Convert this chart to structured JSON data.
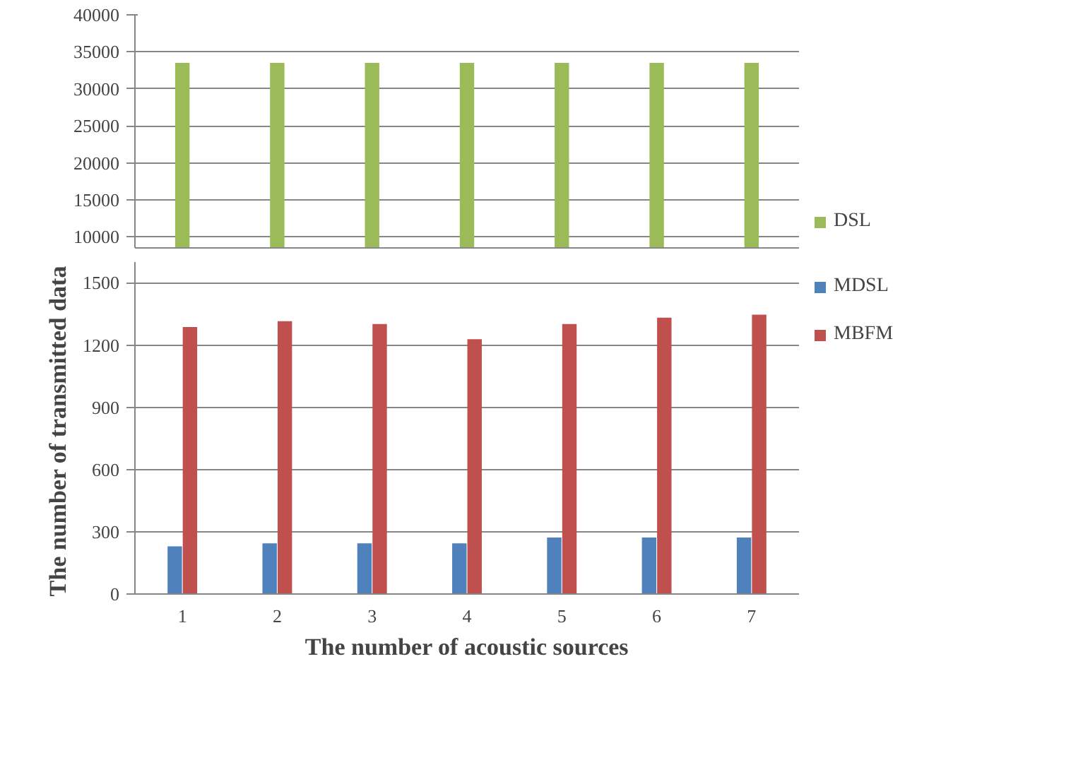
{
  "chart_data": [
    {
      "type": "bar",
      "categories": [
        "1",
        "2",
        "3",
        "4",
        "5",
        "6",
        "7"
      ],
      "ylim": [
        8500,
        40000
      ],
      "yticks": [
        10000,
        15000,
        20000,
        25000,
        30000,
        35000,
        40000
      ],
      "grid": "y",
      "tick_labels": "y",
      "legend": "right",
      "series": [
        {
          "name": "DSL",
          "color": "#9bbb59",
          "values": [
            33500,
            33500,
            33500,
            33500,
            33500,
            33500,
            33500
          ]
        }
      ]
    },
    {
      "type": "bar",
      "categories": [
        "1",
        "2",
        "3",
        "4",
        "5",
        "6",
        "7"
      ],
      "ylim": [
        0,
        1600
      ],
      "yticks": [
        0,
        300,
        600,
        900,
        1200,
        1500
      ],
      "grid": "y",
      "legend": "right",
      "xlabel": "The number of acoustic sources",
      "ylabel": "The number of  transmitted data",
      "series": [
        {
          "name": "MDSL",
          "color": "#4f81bd",
          "values": [
            230,
            244,
            244,
            244,
            272,
            272,
            272
          ]
        },
        {
          "name": "MBFM",
          "color": "#c0504d",
          "values": [
            1287,
            1315,
            1301,
            1228,
            1301,
            1332,
            1346
          ]
        }
      ]
    }
  ]
}
